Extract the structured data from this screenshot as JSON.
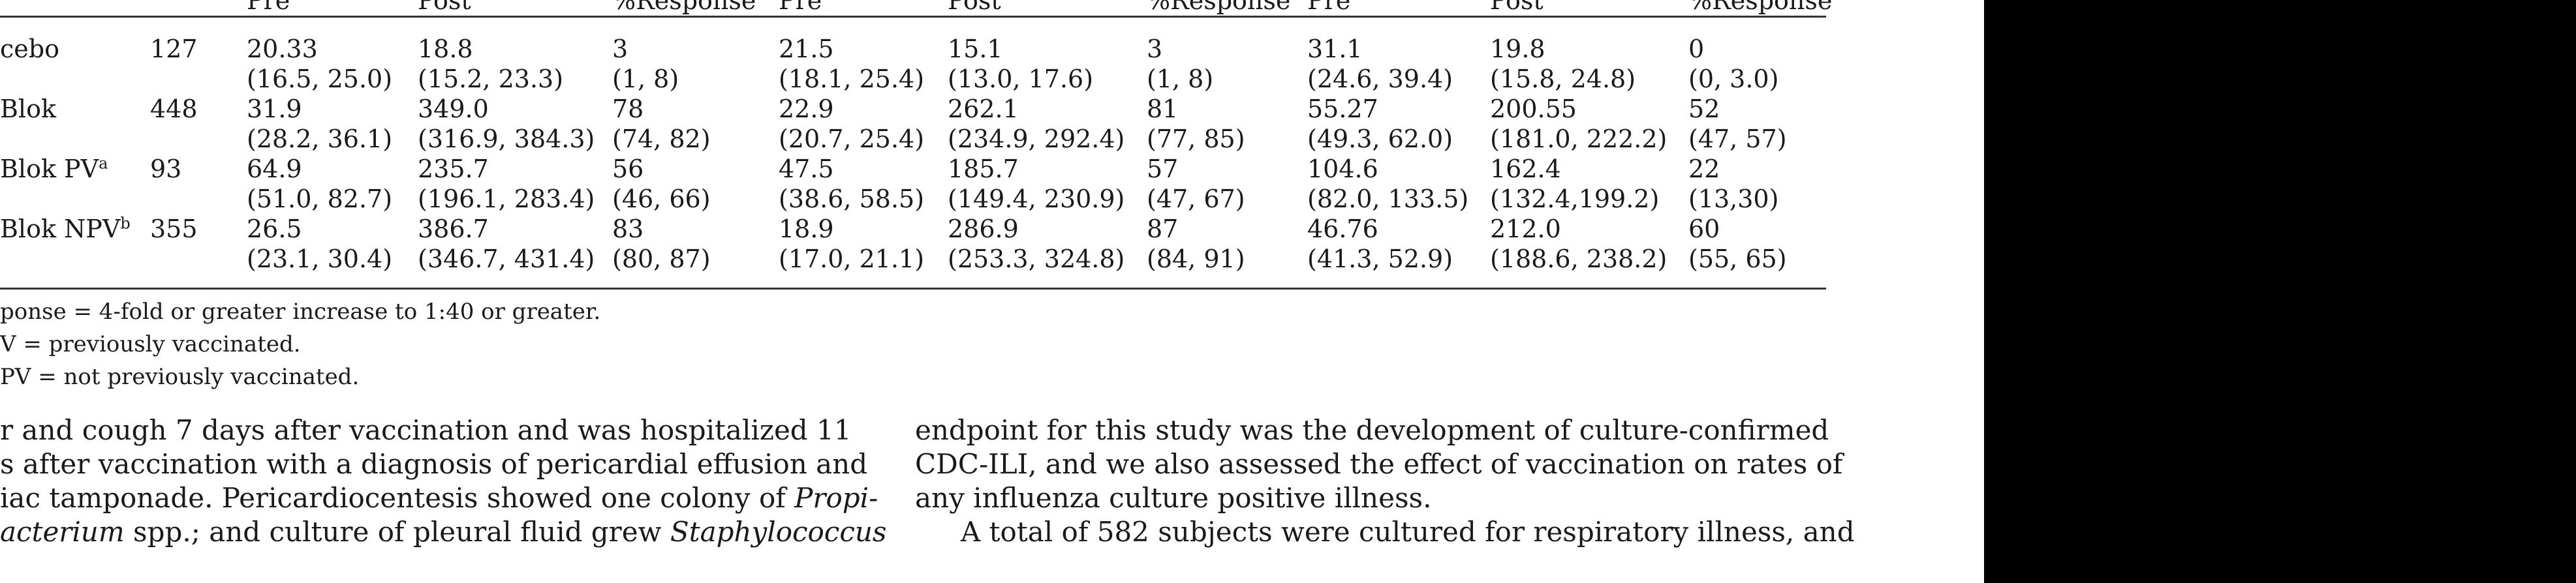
{
  "table": {
    "header_cells": [
      "Pre",
      "Post",
      "%Response",
      "Pre",
      "Post",
      "%Response",
      "Pre",
      "Post",
      "%Response"
    ],
    "rows": [
      {
        "label": "cebo",
        "label_sup": "",
        "n": "127",
        "values": [
          "20.33",
          "18.8",
          "3",
          "21.5",
          "15.1",
          "3",
          "31.1",
          "19.8",
          "0"
        ],
        "ci": [
          "(16.5, 25.0)",
          "(15.2, 23.3)",
          "(1, 8)",
          "(18.1, 25.4)",
          "(13.0, 17.6)",
          "(1, 8)",
          "(24.6, 39.4)",
          "(15.8, 24.8)",
          "(0, 3.0)"
        ]
      },
      {
        "label": "Blok",
        "label_sup": "",
        "n": "448",
        "values": [
          "31.9",
          "349.0",
          "78",
          "22.9",
          "262.1",
          "81",
          "55.27",
          "200.55",
          "52"
        ],
        "ci": [
          "(28.2, 36.1)",
          "(316.9, 384.3)",
          "(74, 82)",
          "(20.7, 25.4)",
          "(234.9, 292.4)",
          "(77, 85)",
          "(49.3, 62.0)",
          "(181.0, 222.2)",
          "(47, 57)"
        ]
      },
      {
        "label": "Blok PV",
        "label_sup": "a",
        "n": "93",
        "values": [
          "64.9",
          "235.7",
          "56",
          "47.5",
          "185.7",
          "57",
          "104.6",
          "162.4",
          "22"
        ],
        "ci": [
          "(51.0, 82.7)",
          "(196.1, 283.4)",
          "(46, 66)",
          "(38.6, 58.5)",
          "(149.4, 230.9)",
          "(47, 67)",
          "(82.0, 133.5)",
          "(132.4,199.2)",
          "(13,30)"
        ]
      },
      {
        "label": "Blok NPV",
        "label_sup": "b",
        "n": "355",
        "values": [
          "26.5",
          "386.7",
          "83",
          "18.9",
          "286.9",
          "87",
          "46.76",
          "212.0",
          "60"
        ],
        "ci": [
          "(23.1, 30.4)",
          "(346.7, 431.4)",
          "(80, 87)",
          "(17.0, 21.1)",
          "(253.3, 324.8)",
          "(84, 91)",
          "(41.3, 52.9)",
          "(188.6, 238.2)",
          "(55, 65)"
        ]
      }
    ],
    "footnotes": [
      "ponse = 4-fold or greater increase to 1:40 or greater.",
      "V = previously vaccinated.",
      "PV = not previously vaccinated."
    ]
  },
  "body_left": {
    "line1": "r and cough 7 days after vaccination and was hospitalized 11",
    "line2": "s after vaccination with a diagnosis of pericardial effusion and",
    "line3_plain": "iac tamponade. Pericardiocentesis showed one colony of ",
    "line3_italic": "Propi-",
    "line4_italic_a": "acterium",
    "line4_plain": " spp.; and culture of pleural fluid grew ",
    "line4_italic_b": "Staphylococcus"
  },
  "body_right": {
    "line1": "endpoint for this study was the development of culture-confirmed",
    "line2": "CDC-ILI, and we also assessed the effect of vaccination on rates of",
    "line3": "any influenza culture positive illness.",
    "line4": "A total of 582 subjects were cultured for respiratory illness, and"
  }
}
